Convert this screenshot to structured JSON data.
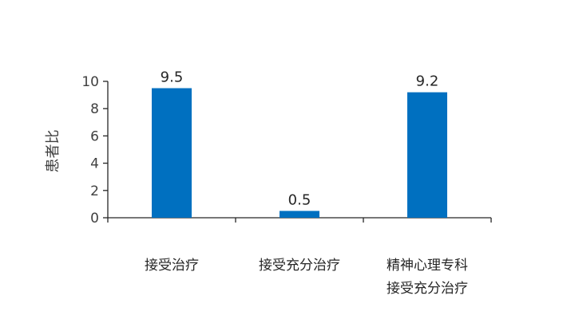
{
  "chart_data": {
    "type": "bar",
    "title": "",
    "xlabel": "",
    "ylabel": "患者比",
    "categories": [
      [
        "接受治疗"
      ],
      [
        "接受充分治疗"
      ],
      [
        "精神心理专科",
        "接受充分治疗"
      ]
    ],
    "values": [
      9.5,
      0.5,
      9.2
    ],
    "value_labels": [
      "9.5",
      "0.5",
      "9.2"
    ],
    "yticks": [
      "0",
      "2",
      "4",
      "6",
      "8",
      "10"
    ],
    "ylim": [
      0,
      10
    ],
    "grid": false,
    "legend": "none",
    "bar_color": "#0070C0"
  }
}
